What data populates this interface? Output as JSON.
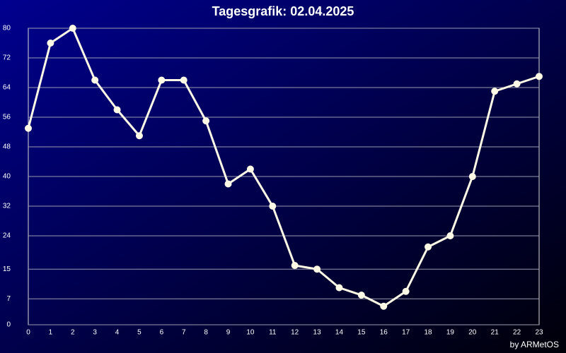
{
  "chart_data": {
    "type": "line",
    "title": "Tagesgrafik: 02.04.2025",
    "credit": "by ARMetOS",
    "x": [
      0,
      1,
      2,
      3,
      4,
      5,
      6,
      7,
      8,
      9,
      10,
      11,
      12,
      13,
      14,
      15,
      16,
      17,
      18,
      19,
      20,
      21,
      22,
      23
    ],
    "series": [
      {
        "color": "#fffbe6",
        "values": [
          53,
          76,
          80,
          66,
          58,
          51,
          66,
          66,
          55,
          38,
          42,
          32,
          16,
          15,
          10,
          8,
          5,
          9,
          21,
          24,
          40,
          63,
          65,
          67
        ]
      }
    ],
    "xlim": [
      0,
      23
    ],
    "xticks": [
      0,
      1,
      2,
      3,
      4,
      5,
      6,
      7,
      8,
      9,
      10,
      11,
      12,
      13,
      14,
      15,
      16,
      17,
      18,
      19,
      20,
      21,
      22,
      23
    ],
    "ylim": [
      0,
      80
    ],
    "yticks": [
      0,
      7,
      15,
      24,
      32,
      40,
      48,
      56,
      64,
      72,
      80
    ],
    "grid": true
  }
}
